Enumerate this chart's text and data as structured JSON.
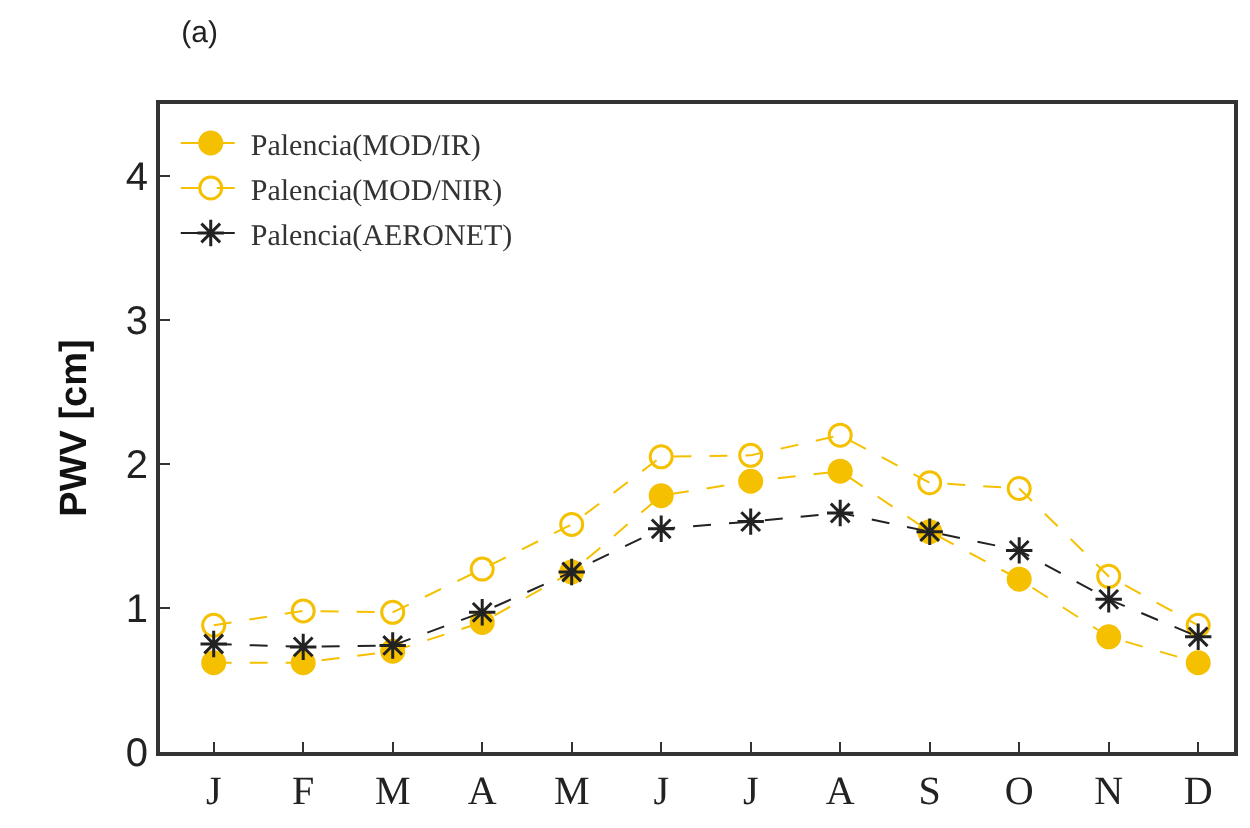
{
  "chart_data": {
    "type": "line",
    "title": "(a)",
    "ylabel": "PWV [cm]",
    "categories": [
      "J",
      "F",
      "M",
      "A",
      "M",
      "J",
      "J",
      "A",
      "S",
      "O",
      "N",
      "D"
    ],
    "series": [
      {
        "name": "Palencia(MOD/IR)",
        "color": "#f5c000",
        "marker": "circle",
        "values": [
          0.62,
          0.62,
          0.7,
          0.9,
          1.25,
          1.78,
          1.88,
          1.95,
          1.53,
          1.2,
          0.8,
          0.62
        ]
      },
      {
        "name": "Palencia(MOD/NIR)",
        "color": "#f5c000",
        "marker": "circle-open",
        "values": [
          0.88,
          0.98,
          0.97,
          1.27,
          1.58,
          2.05,
          2.06,
          2.2,
          1.87,
          1.83,
          1.22,
          0.88
        ]
      },
      {
        "name": "Palencia(AERONET)",
        "color": "#222222",
        "marker": "cross",
        "values": [
          0.75,
          0.73,
          0.74,
          0.97,
          1.25,
          1.55,
          1.6,
          1.66,
          1.53,
          1.4,
          1.06,
          0.8
        ]
      }
    ],
    "ylim": [
      0,
      4.5
    ],
    "yticks": [
      0,
      1,
      2,
      3,
      4
    ],
    "grid": false,
    "legend": "top left",
    "line_style": "dashed"
  }
}
